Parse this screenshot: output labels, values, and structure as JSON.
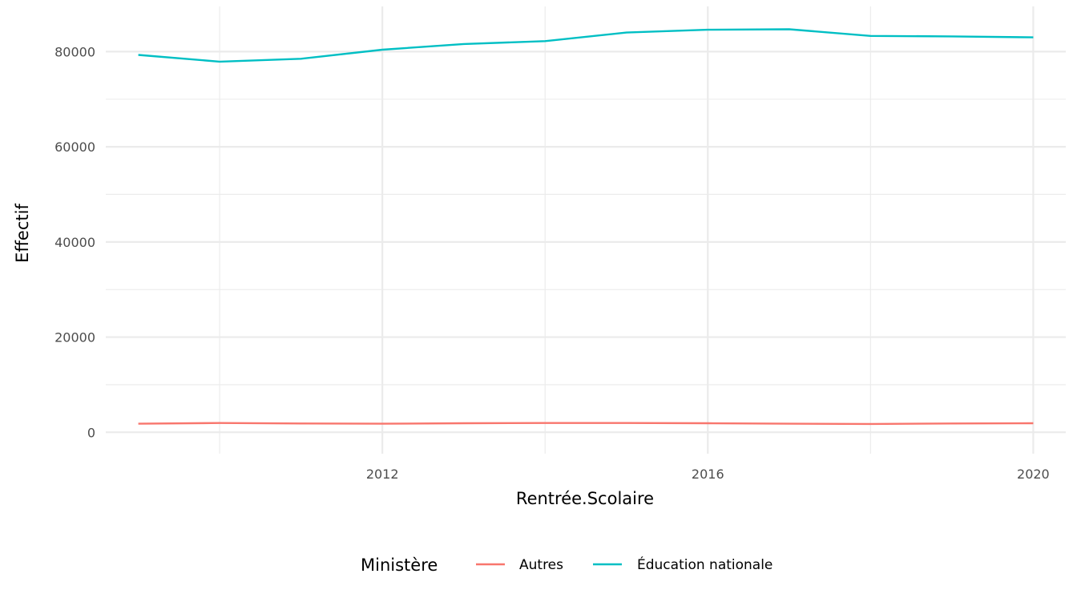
{
  "chart_data": {
    "type": "line",
    "xlabel": "Rentrée.Scolaire",
    "ylabel": "Effectif",
    "xlim": [
      2008.6,
      2020.4
    ],
    "ylim": [
      -4500,
      89500
    ],
    "x_ticks": [
      2012,
      2016,
      2020
    ],
    "x_minor_ticks": [
      2010,
      2014,
      2018
    ],
    "y_ticks": [
      0,
      20000,
      40000,
      60000,
      80000
    ],
    "y_minor_ticks": [
      10000,
      30000,
      50000,
      70000
    ],
    "grid": true,
    "legend": {
      "title": "Ministère",
      "position": "bottom"
    },
    "x": [
      2009,
      2010,
      2011,
      2012,
      2013,
      2014,
      2015,
      2016,
      2017,
      2018,
      2019,
      2020
    ],
    "series": [
      {
        "name": "Autres",
        "color": "#F8766D",
        "values": [
          1800,
          1950,
          1850,
          1800,
          1900,
          1950,
          1950,
          1900,
          1800,
          1750,
          1850,
          1900
        ]
      },
      {
        "name": "Éducation nationale",
        "color": "#00BFC4",
        "values": [
          79300,
          77900,
          78500,
          80400,
          81600,
          82200,
          84000,
          84600,
          84700,
          83300,
          83200,
          83000
        ]
      }
    ]
  }
}
